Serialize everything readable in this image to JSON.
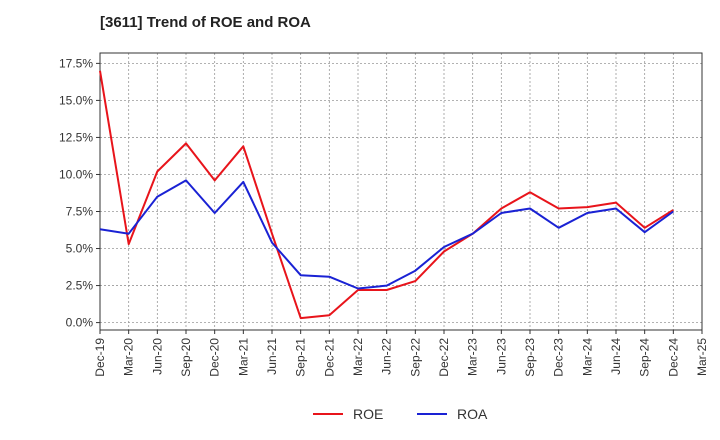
{
  "chart_data": {
    "type": "line",
    "title": "[3611]  Trend of ROE and ROA",
    "categories": [
      "Dec-19",
      "Mar-20",
      "Jun-20",
      "Sep-20",
      "Dec-20",
      "Mar-21",
      "Jun-21",
      "Sep-21",
      "Dec-21",
      "Mar-22",
      "Jun-22",
      "Sep-22",
      "Dec-22",
      "Mar-23",
      "Jun-23",
      "Sep-23",
      "Dec-23",
      "Mar-24",
      "Jun-24",
      "Sep-24",
      "Dec-24",
      "Mar-25"
    ],
    "y_ticks": [
      "0.0%",
      "2.5%",
      "5.0%",
      "7.5%",
      "10.0%",
      "12.5%",
      "15.0%",
      "17.5%"
    ],
    "ylim": [
      -0.5,
      18.2
    ],
    "grid": true,
    "legend_position": "bottom-center",
    "series": [
      {
        "name": "ROE",
        "color": "#e8141b",
        "values": [
          17.0,
          5.3,
          10.2,
          12.1,
          9.6,
          11.9,
          6.0,
          0.3,
          0.5,
          2.2,
          2.2,
          2.8,
          4.8,
          6.0,
          7.7,
          8.8,
          7.7,
          7.8,
          8.1,
          6.4,
          7.6,
          null
        ]
      },
      {
        "name": "ROA",
        "color": "#1a22d4",
        "values": [
          6.3,
          6.0,
          8.5,
          9.6,
          7.4,
          9.5,
          5.4,
          3.2,
          3.1,
          2.3,
          2.5,
          3.5,
          5.1,
          6.0,
          7.4,
          7.7,
          6.4,
          7.4,
          7.7,
          6.1,
          7.5,
          null
        ]
      }
    ]
  }
}
